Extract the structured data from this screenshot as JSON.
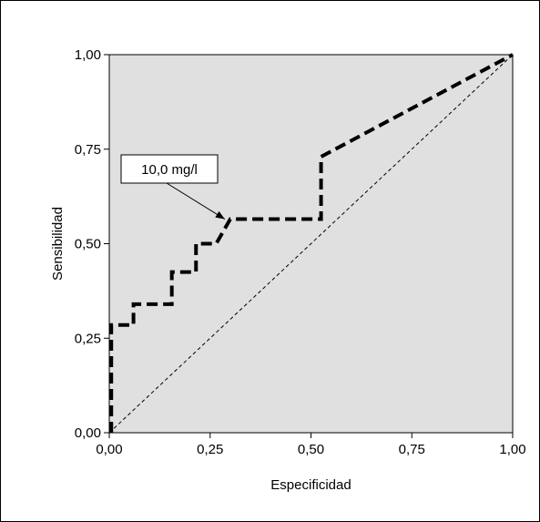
{
  "chart_data": {
    "type": "line",
    "title": "",
    "xlabel": "Especificidad",
    "ylabel": "Sensibilidad",
    "xlim": [
      0,
      1
    ],
    "ylim": [
      0,
      1
    ],
    "x_ticks": [
      "0,00",
      "0,25",
      "0,50",
      "0,75",
      "1,00"
    ],
    "y_ticks": [
      "0,00",
      "0,25",
      "0,50",
      "0,75",
      "1,00"
    ],
    "grid": false,
    "plot_background": "#e0e0e0",
    "series": [
      {
        "style": "thick-dashed",
        "x": [
          0.005,
          0.005,
          0.06,
          0.06,
          0.155,
          0.155,
          0.215,
          0.215,
          0.265,
          0.3,
          0.525,
          0.525,
          1.0
        ],
        "y": [
          0.0,
          0.285,
          0.285,
          0.34,
          0.34,
          0.425,
          0.425,
          0.5,
          0.5,
          0.565,
          0.565,
          0.73,
          1.0
        ]
      },
      {
        "style": "thin-dashed-diagonal",
        "x": [
          0.0,
          1.0
        ],
        "y": [
          0.0,
          1.0
        ]
      }
    ],
    "annotations": [
      {
        "text": "10,0 mg/l",
        "target_x": 0.3,
        "target_y": 0.565
      }
    ]
  }
}
